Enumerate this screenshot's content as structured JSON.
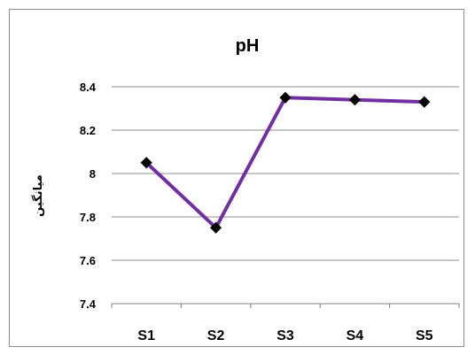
{
  "chart_data": {
    "type": "line",
    "title": "pH",
    "xlabel": "",
    "ylabel": "میانگین",
    "categories": [
      "S1",
      "S2",
      "S3",
      "S4",
      "S5"
    ],
    "series": [
      {
        "values": [
          8.05,
          7.75,
          8.35,
          8.34,
          8.33
        ],
        "color": "#7030A0",
        "marker": "diamond",
        "marker_color": "#000000"
      }
    ],
    "ylim": [
      7.4,
      8.4
    ],
    "yticks": [
      "7.4",
      "7.6",
      "7.8",
      "8",
      "8.2",
      "8.4"
    ],
    "grid": true,
    "legend": "none"
  }
}
